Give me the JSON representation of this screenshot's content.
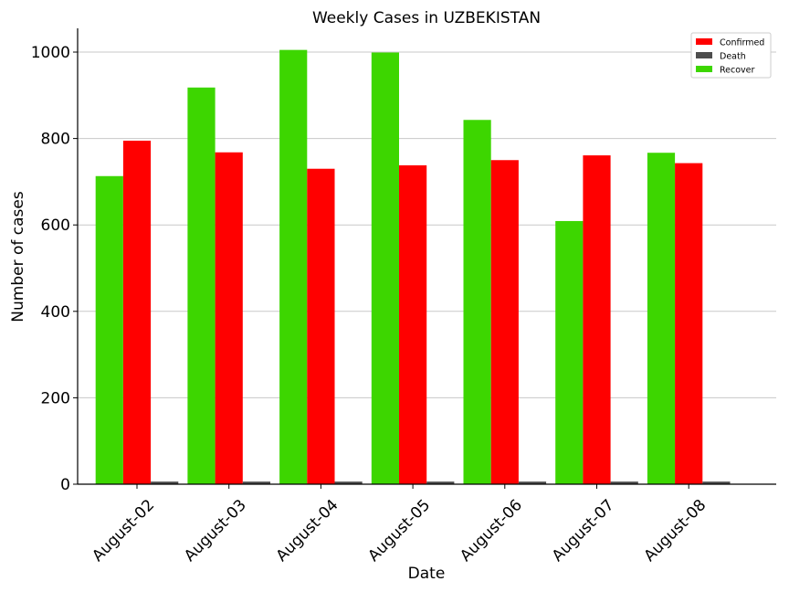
{
  "chart_data": {
    "type": "bar",
    "title": "Weekly Cases in UZBEKISTAN",
    "xlabel": "Date",
    "ylabel": "Number of cases",
    "categories": [
      "August-02",
      "August-03",
      "August-04",
      "August-05",
      "August-06",
      "August-07",
      "August-08"
    ],
    "series": [
      {
        "name": "Recover",
        "color": "#3dd600",
        "values": [
          713,
          918,
          1005,
          999,
          843,
          609,
          767
        ]
      },
      {
        "name": "Confirmed",
        "color": "#ff0000",
        "values": [
          795,
          768,
          730,
          738,
          750,
          761,
          743
        ]
      },
      {
        "name": "Death",
        "color": "#4d4d4d",
        "values": [
          6,
          6,
          6,
          6,
          6,
          6,
          6
        ]
      }
    ],
    "legend_order": [
      "Confirmed",
      "Death",
      "Recover"
    ],
    "legend_position": "top-right",
    "ylim": [
      0,
      1055
    ],
    "yticks": [
      "0",
      "200",
      "400",
      "600",
      "800",
      "1000"
    ],
    "ytick_values": [
      0,
      200,
      400,
      600,
      800,
      1000
    ],
    "grid": "horizontal"
  }
}
